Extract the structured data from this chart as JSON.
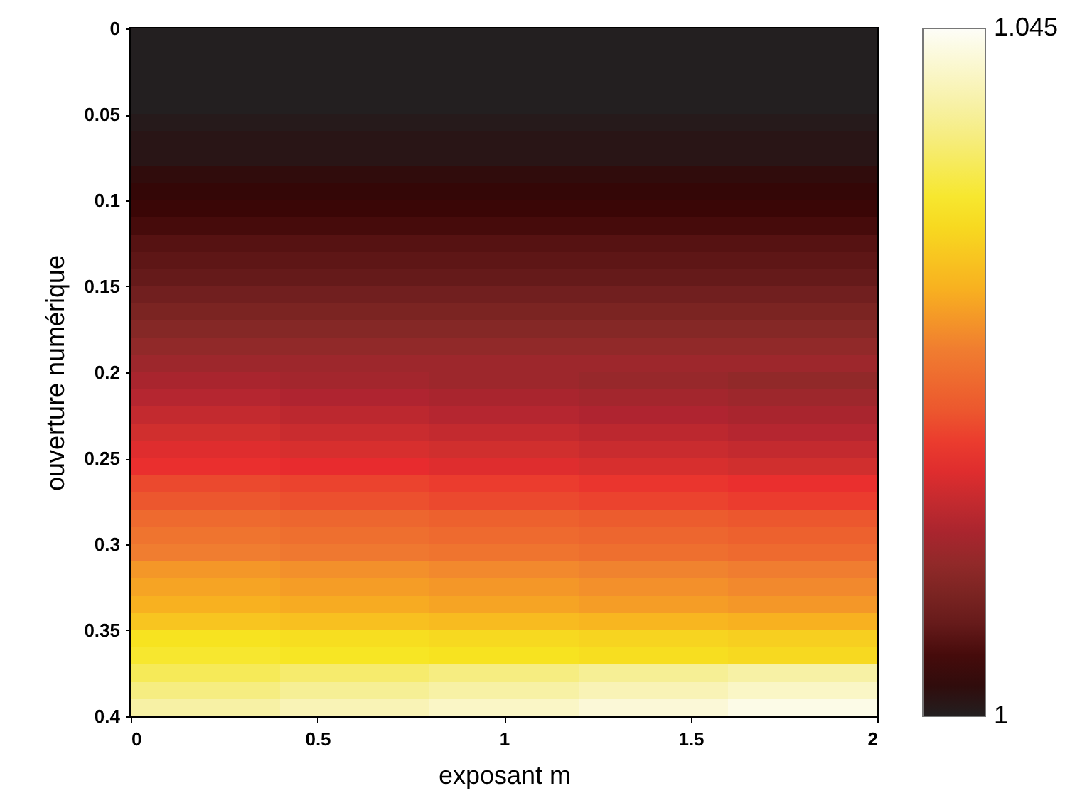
{
  "chart_data": {
    "type": "heatmap",
    "xlabel": "exposant m",
    "ylabel": "ouverture numérique",
    "x": [
      0.2,
      0.6,
      1.0,
      1.4,
      1.8
    ],
    "xlim": [
      0,
      2
    ],
    "xticks": [
      0,
      0.5,
      1,
      1.5,
      2
    ],
    "ylim": [
      0.4,
      0
    ],
    "yticks": [
      0,
      0.05,
      0.1,
      0.15,
      0.2,
      0.25,
      0.3,
      0.35,
      0.4
    ],
    "clim": [
      1,
      1.045
    ],
    "cticks": [
      1,
      1.045
    ],
    "cells": [
      [
        1.0,
        1.0,
        1.0,
        1.0,
        1.0
      ],
      [
        1.0,
        1.0,
        1.0,
        1.0,
        1.0
      ],
      [
        1.0,
        1.0,
        1.0,
        1.0,
        1.0
      ],
      [
        1.0,
        1.0,
        1.0,
        1.0,
        1.0
      ],
      [
        1.0,
        1.0,
        1.0,
        1.0,
        1.0
      ],
      [
        1.0005,
        1.0005,
        1.0005,
        1.0005,
        1.0005
      ],
      [
        1.001,
        1.001,
        1.001,
        1.001,
        1.001
      ],
      [
        1.001,
        1.001,
        1.001,
        1.001,
        1.001
      ],
      [
        1.002,
        1.002,
        1.002,
        1.002,
        1.002
      ],
      [
        1.0025,
        1.0025,
        1.0025,
        1.0025,
        1.0025
      ],
      [
        1.003,
        1.003,
        1.003,
        1.003,
        1.003
      ],
      [
        1.004,
        1.004,
        1.004,
        1.004,
        1.004
      ],
      [
        1.005,
        1.005,
        1.005,
        1.005,
        1.005
      ],
      [
        1.0055,
        1.0055,
        1.0055,
        1.0055,
        1.0055
      ],
      [
        1.006,
        1.006,
        1.006,
        1.006,
        1.006
      ],
      [
        1.007,
        1.007,
        1.007,
        1.007,
        1.007
      ],
      [
        1.008,
        1.008,
        1.008,
        1.008,
        1.008
      ],
      [
        1.009,
        1.009,
        1.009,
        1.009,
        1.009
      ],
      [
        1.01,
        1.01,
        1.01,
        1.01,
        1.01
      ],
      [
        1.011,
        1.011,
        1.011,
        1.011,
        1.011
      ],
      [
        1.012,
        1.0115,
        1.011,
        1.0105,
        1.01
      ],
      [
        1.013,
        1.0125,
        1.012,
        1.0115,
        1.011
      ],
      [
        1.014,
        1.0135,
        1.013,
        1.0125,
        1.012
      ],
      [
        1.015,
        1.0145,
        1.014,
        1.0135,
        1.013
      ],
      [
        1.016,
        1.0155,
        1.015,
        1.0145,
        1.014
      ],
      [
        1.017,
        1.0165,
        1.016,
        1.0155,
        1.015
      ],
      [
        1.019,
        1.0185,
        1.018,
        1.0175,
        1.017
      ],
      [
        1.02,
        1.0195,
        1.019,
        1.0185,
        1.018
      ],
      [
        1.022,
        1.0215,
        1.021,
        1.0205,
        1.02
      ],
      [
        1.023,
        1.0225,
        1.022,
        1.0215,
        1.021
      ],
      [
        1.024,
        1.0235,
        1.023,
        1.0225,
        1.022
      ],
      [
        1.026,
        1.0255,
        1.025,
        1.0245,
        1.024
      ],
      [
        1.027,
        1.0265,
        1.026,
        1.0255,
        1.025
      ],
      [
        1.028,
        1.0275,
        1.027,
        1.0265,
        1.026
      ],
      [
        1.03,
        1.0295,
        1.029,
        1.0285,
        1.028
      ],
      [
        1.033,
        1.0325,
        1.032,
        1.0315,
        1.031
      ],
      [
        1.034,
        1.0335,
        1.033,
        1.0325,
        1.032
      ],
      [
        1.036,
        1.037,
        1.038,
        1.039,
        1.04
      ],
      [
        1.038,
        1.039,
        1.04,
        1.041,
        1.042
      ],
      [
        1.04,
        1.041,
        1.042,
        1.043,
        1.044
      ]
    ]
  }
}
